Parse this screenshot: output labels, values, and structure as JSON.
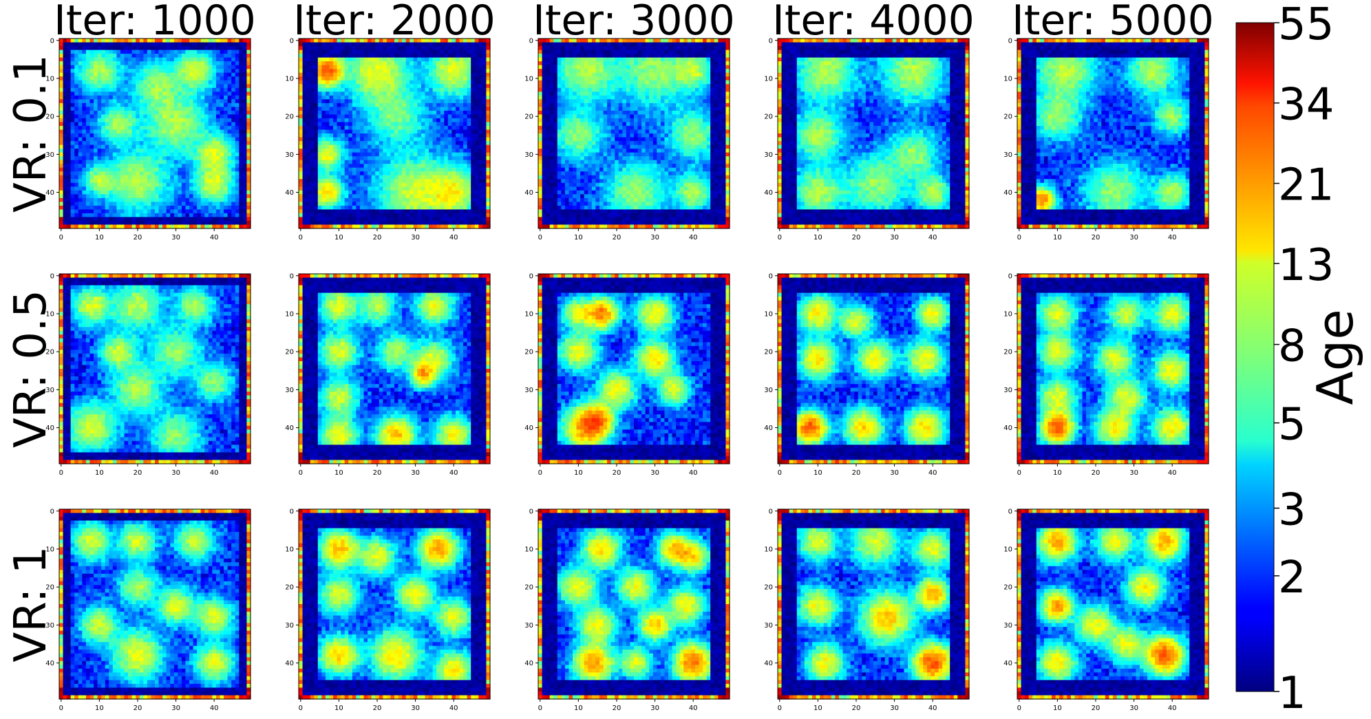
{
  "chart_data": {
    "type": "heatmap",
    "grid_size": 50,
    "col_titles": [
      "Iter: 1000",
      "Iter: 2000",
      "Iter: 3000",
      "Iter: 4000",
      "Iter: 5000"
    ],
    "row_labels": [
      "VR: 0.1",
      "VR: 0.5",
      "VR: 1"
    ],
    "x_ticks": [
      0,
      10,
      20,
      30,
      40
    ],
    "y_ticks": [
      0,
      10,
      20,
      30,
      40
    ],
    "colorbar": {
      "label": "Age",
      "scale": "log",
      "range": [
        1,
        55
      ],
      "ticks": [
        1,
        2,
        3,
        5,
        8,
        13,
        21,
        34,
        55
      ],
      "colormap": "jet"
    },
    "panels": [
      {
        "row": 0,
        "col": 0,
        "inner": [
          3,
          46
        ],
        "blobs": [
          [
            10,
            8,
            3.5,
            7
          ],
          [
            35,
            8,
            3,
            9
          ],
          [
            25,
            12,
            4,
            6
          ],
          [
            15,
            22,
            3,
            7
          ],
          [
            30,
            22,
            5,
            7
          ],
          [
            40,
            30,
            3,
            9
          ],
          [
            20,
            37,
            5,
            7
          ],
          [
            40,
            38,
            3,
            9
          ],
          [
            10,
            37,
            2.5,
            7
          ]
        ]
      },
      {
        "row": 0,
        "col": 1,
        "inner": [
          5,
          44
        ],
        "blobs": [
          [
            7,
            8,
            2.5,
            22
          ],
          [
            20,
            8,
            5,
            9
          ],
          [
            40,
            8,
            4,
            9
          ],
          [
            7,
            30,
            2.5,
            10
          ],
          [
            7,
            40,
            2.5,
            12
          ],
          [
            30,
            40,
            6,
            8
          ],
          [
            40,
            40,
            4,
            9
          ],
          [
            25,
            20,
            5,
            5
          ]
        ]
      },
      {
        "row": 0,
        "col": 2,
        "inner": [
          5,
          44
        ],
        "blobs": [
          [
            12,
            8,
            5,
            7
          ],
          [
            30,
            8,
            6,
            6
          ],
          [
            40,
            8,
            3,
            7
          ],
          [
            10,
            25,
            4,
            6
          ],
          [
            40,
            25,
            4,
            6
          ],
          [
            25,
            40,
            5,
            6
          ],
          [
            40,
            40,
            3,
            7
          ]
        ]
      },
      {
        "row": 0,
        "col": 3,
        "inner": [
          5,
          44
        ],
        "blobs": [
          [
            12,
            8,
            5,
            7
          ],
          [
            35,
            8,
            5,
            7
          ],
          [
            10,
            25,
            4,
            7
          ],
          [
            35,
            30,
            4,
            6
          ],
          [
            10,
            40,
            4,
            7
          ],
          [
            25,
            38,
            5,
            6
          ],
          [
            40,
            40,
            3,
            7
          ]
        ]
      },
      {
        "row": 0,
        "col": 4,
        "inner": [
          5,
          44
        ],
        "blobs": [
          [
            12,
            8,
            5,
            7
          ],
          [
            35,
            8,
            4,
            7
          ],
          [
            10,
            20,
            4,
            6
          ],
          [
            40,
            20,
            3,
            6
          ],
          [
            6,
            42,
            2,
            18
          ],
          [
            25,
            40,
            5,
            6
          ],
          [
            40,
            40,
            3,
            7
          ]
        ]
      },
      {
        "row": 1,
        "col": 0,
        "inner": [
          3,
          46
        ],
        "blobs": [
          [
            8,
            8,
            3,
            9
          ],
          [
            20,
            8,
            4,
            7
          ],
          [
            35,
            8,
            3,
            7
          ],
          [
            15,
            20,
            3,
            8
          ],
          [
            30,
            20,
            4,
            6
          ],
          [
            20,
            30,
            4,
            7
          ],
          [
            40,
            28,
            3,
            6
          ],
          [
            8,
            40,
            4,
            8
          ],
          [
            30,
            42,
            4,
            6
          ]
        ]
      },
      {
        "row": 1,
        "col": 1,
        "inner": [
          5,
          44
        ],
        "blobs": [
          [
            10,
            8,
            3,
            9
          ],
          [
            20,
            8,
            3,
            7
          ],
          [
            35,
            8,
            3,
            9
          ],
          [
            10,
            20,
            3,
            9
          ],
          [
            25,
            20,
            3,
            7
          ],
          [
            35,
            22,
            3,
            9
          ],
          [
            32,
            26,
            2,
            14
          ],
          [
            10,
            32,
            3,
            8
          ],
          [
            10,
            42,
            3,
            10
          ],
          [
            25,
            42,
            3,
            14
          ],
          [
            40,
            42,
            3,
            10
          ]
        ]
      },
      {
        "row": 1,
        "col": 2,
        "inner": [
          5,
          44
        ],
        "blobs": [
          [
            16,
            10,
            2.5,
            18
          ],
          [
            10,
            10,
            2.5,
            9
          ],
          [
            30,
            10,
            3,
            10
          ],
          [
            10,
            20,
            3,
            10
          ],
          [
            30,
            22,
            3,
            11
          ],
          [
            20,
            30,
            3,
            10
          ],
          [
            35,
            30,
            2.5,
            9
          ],
          [
            12,
            40,
            3.5,
            16
          ],
          [
            15,
            38,
            2.5,
            14
          ]
        ]
      },
      {
        "row": 1,
        "col": 3,
        "inner": [
          5,
          44
        ],
        "blobs": [
          [
            10,
            10,
            3,
            11
          ],
          [
            40,
            10,
            2.5,
            11
          ],
          [
            20,
            12,
            2.5,
            9
          ],
          [
            10,
            22,
            3,
            11
          ],
          [
            25,
            22,
            3,
            10
          ],
          [
            38,
            22,
            3,
            10
          ],
          [
            8,
            40,
            2.5,
            22
          ],
          [
            22,
            40,
            3,
            12
          ],
          [
            38,
            40,
            3,
            12
          ]
        ]
      },
      {
        "row": 1,
        "col": 4,
        "inner": [
          5,
          44
        ],
        "blobs": [
          [
            10,
            10,
            3,
            9
          ],
          [
            28,
            10,
            3,
            8
          ],
          [
            40,
            10,
            3,
            9
          ],
          [
            10,
            20,
            3,
            9
          ],
          [
            25,
            22,
            3,
            9
          ],
          [
            40,
            25,
            3,
            10
          ],
          [
            10,
            32,
            3,
            9
          ],
          [
            28,
            32,
            3,
            9
          ],
          [
            10,
            40,
            2.5,
            22
          ],
          [
            25,
            40,
            3,
            11
          ],
          [
            40,
            40,
            3,
            11
          ]
        ]
      },
      {
        "row": 2,
        "col": 0,
        "inner": [
          3,
          46
        ],
        "blobs": [
          [
            8,
            8,
            3,
            9
          ],
          [
            20,
            8,
            3,
            8
          ],
          [
            35,
            8,
            3,
            8
          ],
          [
            20,
            20,
            3,
            7
          ],
          [
            30,
            25,
            3,
            9
          ],
          [
            10,
            30,
            3,
            8
          ],
          [
            40,
            28,
            3,
            9
          ],
          [
            20,
            38,
            4,
            9
          ],
          [
            40,
            40,
            3,
            9
          ]
        ]
      },
      {
        "row": 2,
        "col": 1,
        "inner": [
          5,
          44
        ],
        "blobs": [
          [
            10,
            10,
            3,
            14
          ],
          [
            36,
            10,
            3,
            16
          ],
          [
            20,
            12,
            3,
            9
          ],
          [
            10,
            22,
            3,
            9
          ],
          [
            30,
            22,
            3,
            10
          ],
          [
            40,
            28,
            3,
            9
          ],
          [
            10,
            38,
            3,
            13
          ],
          [
            25,
            38,
            4,
            11
          ],
          [
            40,
            42,
            3,
            11
          ]
        ]
      },
      {
        "row": 2,
        "col": 2,
        "inner": [
          5,
          44
        ],
        "blobs": [
          [
            16,
            10,
            3,
            12
          ],
          [
            35,
            10,
            2.5,
            14
          ],
          [
            40,
            12,
            2.5,
            12
          ],
          [
            10,
            20,
            3,
            10
          ],
          [
            25,
            20,
            3,
            9
          ],
          [
            38,
            25,
            3,
            10
          ],
          [
            15,
            30,
            3,
            10
          ],
          [
            30,
            30,
            2.5,
            13
          ],
          [
            14,
            40,
            3,
            17
          ],
          [
            40,
            40,
            3,
            19
          ],
          [
            25,
            40,
            2.5,
            9
          ]
        ]
      },
      {
        "row": 2,
        "col": 3,
        "inner": [
          5,
          44
        ],
        "blobs": [
          [
            10,
            8,
            3,
            9
          ],
          [
            25,
            8,
            4,
            8
          ],
          [
            40,
            10,
            3,
            9
          ],
          [
            10,
            25,
            3,
            10
          ],
          [
            28,
            28,
            4,
            13
          ],
          [
            40,
            22,
            2.5,
            16
          ],
          [
            12,
            40,
            3,
            10
          ],
          [
            40,
            40,
            3,
            22
          ]
        ]
      },
      {
        "row": 2,
        "col": 4,
        "inner": [
          5,
          44
        ],
        "blobs": [
          [
            10,
            8,
            3,
            15
          ],
          [
            25,
            8,
            3,
            10
          ],
          [
            38,
            8,
            3,
            15
          ],
          [
            10,
            25,
            2.5,
            16
          ],
          [
            20,
            30,
            3,
            10
          ],
          [
            33,
            20,
            3,
            11
          ],
          [
            28,
            35,
            3,
            9
          ],
          [
            10,
            40,
            3,
            11
          ],
          [
            38,
            38,
            3,
            21
          ]
        ]
      }
    ]
  }
}
